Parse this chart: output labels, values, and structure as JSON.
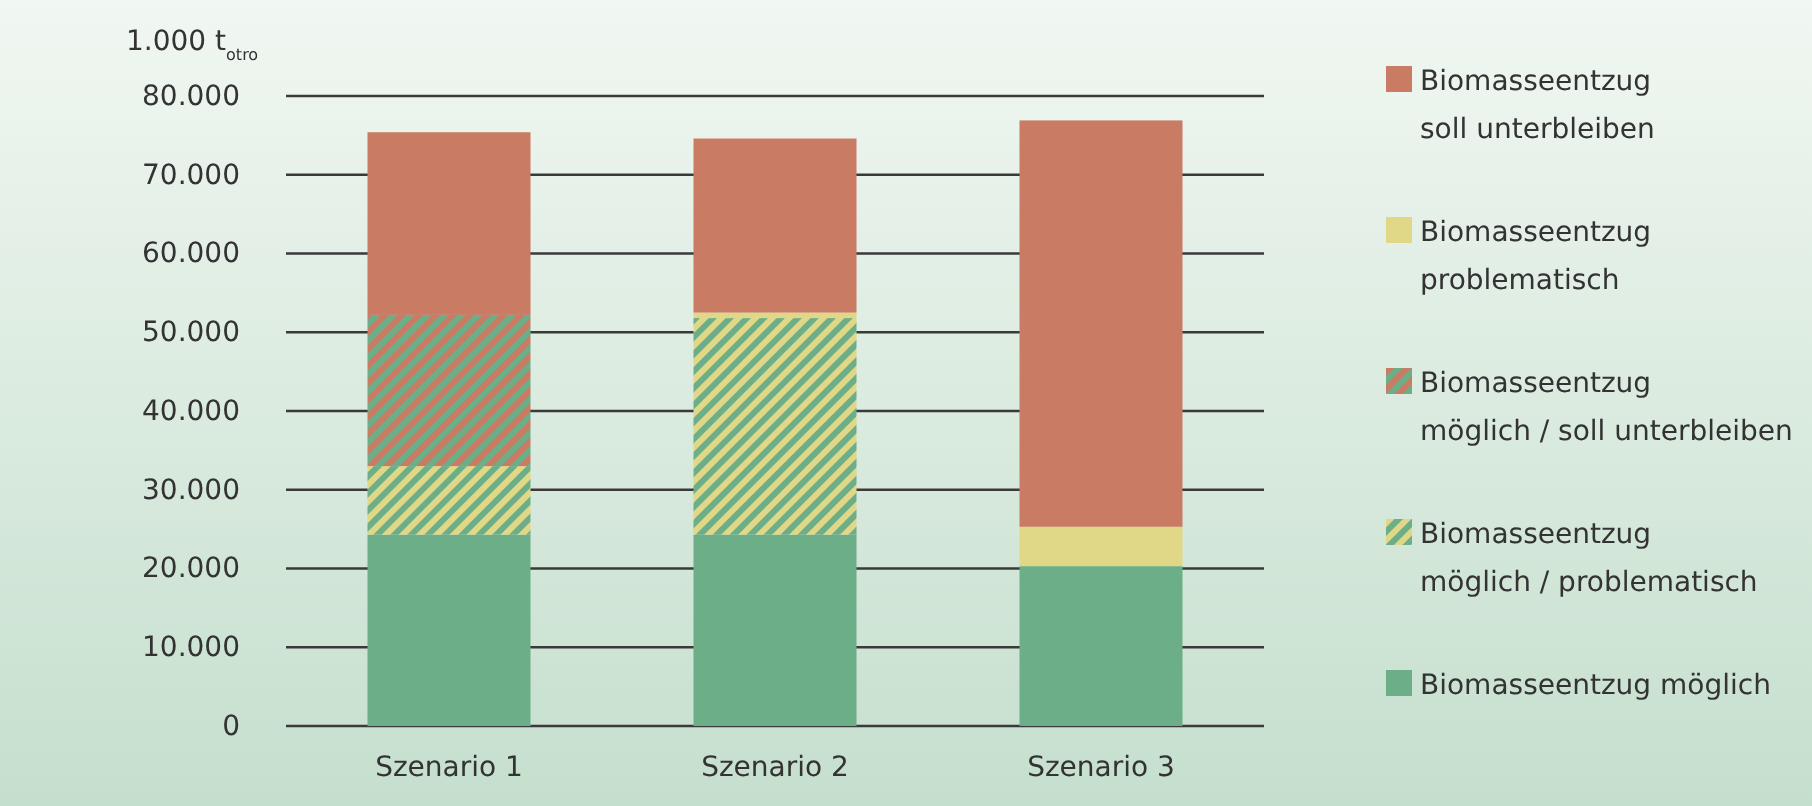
{
  "chart_data": {
    "type": "bar",
    "stacked": true,
    "ylabel": "1.000 t$_{otro}$",
    "categories": [
      "Szenario 1",
      "Szenario 2",
      "Szenario 3"
    ],
    "series": [
      {
        "name": "Biomasseentzug möglich",
        "color": "#6bae88",
        "values": [
          24300,
          24300,
          20300
        ]
      },
      {
        "name": "Biomasseentzug möglich / problematisch",
        "color": "#e0d787",
        "values": [
          8700,
          27500,
          null
        ]
      },
      {
        "name": "Biomasseentzug möglich / soll unterbleiben",
        "color": "#c97b64",
        "values": [
          19200,
          null,
          null
        ]
      },
      {
        "name": "Biomasseentzug problematisch",
        "color": "#e0d787",
        "values": [
          null,
          700,
          5000
        ]
      },
      {
        "name": "Biomasseentzug soll unterbleiben",
        "color": "#c97b64",
        "values": [
          23200,
          22100,
          51600
        ]
      }
    ],
    "ylim": [
      0,
      80000
    ],
    "yticks": [
      0,
      {
        "value": 10000,
        "label": "10.000"
      },
      {
        "value": 20000,
        "label": "20.000"
      },
      {
        "value": 30000,
        "label": "30.000"
      },
      {
        "value": 40000,
        "label": "40.000"
      },
      {
        "value": 50000,
        "label": "50.000"
      },
      {
        "value": 60000,
        "label": "60.000"
      },
      {
        "value": 70000,
        "label": "70.000"
      },
      {
        "value": 80000,
        "label": "80.000"
      }
    ],
    "grid": "y",
    "legend": "right"
  }
}
